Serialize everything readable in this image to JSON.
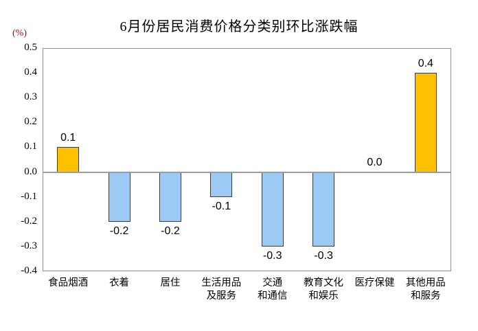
{
  "chart_data": {
    "type": "bar",
    "title": "6月份居民消费价格分类别环比涨跌幅",
    "unit": "(%)",
    "categories": [
      "食品烟酒",
      "衣着",
      "居住",
      "生活用品及服务",
      "交通和通信",
      "教育文化和娱乐",
      "医疗保健",
      "其他用品和服务"
    ],
    "category_lines": [
      [
        "食品烟酒"
      ],
      [
        "衣着"
      ],
      [
        "居住"
      ],
      [
        "生活用品",
        "及服务"
      ],
      [
        "交通",
        "和通信"
      ],
      [
        "教育文化",
        "和娱乐"
      ],
      [
        "医疗保健"
      ],
      [
        "其他用品",
        "和服务"
      ]
    ],
    "values": [
      0.1,
      -0.2,
      -0.2,
      -0.1,
      -0.3,
      -0.3,
      0.0,
      0.4
    ],
    "value_labels": [
      "0.1",
      "-0.2",
      "-0.2",
      "-0.1",
      "-0.3",
      "-0.3",
      "0.0",
      "0.4"
    ],
    "ylabel": "(%)",
    "ylim": [
      -0.4,
      0.5
    ],
    "ytick_step": 0.1,
    "yticks": [
      "0.5",
      "0.4",
      "0.3",
      "0.2",
      "0.1",
      "0.0",
      "-0.1",
      "-0.2",
      "-0.3",
      "-0.4"
    ],
    "grid": false,
    "legend": "none",
    "colors": {
      "positive_bar": "#FFC000",
      "negative_bar": "#9DC9F5",
      "bar_border": "#3B3B3B",
      "axis": "#8C8C8C",
      "zero_line": "#9C9C9C",
      "unit_label": "#C00000",
      "text": "#000000",
      "background": "#FFFFFF"
    }
  }
}
